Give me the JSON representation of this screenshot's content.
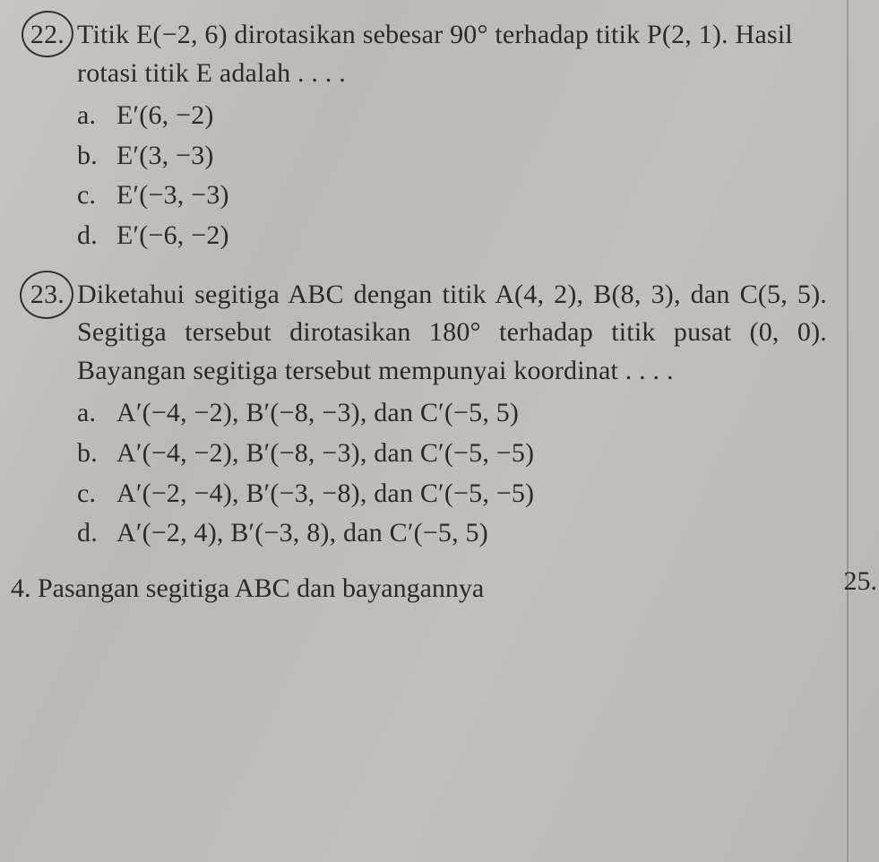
{
  "colors": {
    "paper_bg": "#c0bdb6",
    "text": "#2b2a28",
    "pencil_circle": "#2f2f2d",
    "margin_line": "#8a8780"
  },
  "typography": {
    "family": "Georgia, Times New Roman, serif",
    "base_size_pt": 22,
    "line_height": 1.42
  },
  "q22": {
    "number": "22.",
    "stem": "Titik E(−2, 6) dirotasikan sebesar 90° terhadap titik P(2, 1). Hasil rotasi titik E adalah . . . .",
    "options": {
      "a": {
        "letter": "a.",
        "text": "E′(6, −2)"
      },
      "b": {
        "letter": "b.",
        "text": "E′(3, −3)"
      },
      "c": {
        "letter": "c.",
        "text": "E′(−3, −3)"
      },
      "d": {
        "letter": "d.",
        "text": "E′(−6, −2)"
      }
    }
  },
  "q23": {
    "number": "23.",
    "stem": "Diketahui segitiga ABC dengan titik A(4, 2), B(8, 3), dan C(5, 5). Segitiga tersebut dirotasikan 180° terhadap titik pusat (0, 0). Bayangan segitiga tersebut mempunyai koordinat . . . .",
    "options": {
      "a": {
        "letter": "a.",
        "text": "A′(−4, −2), B′(−8, −3), dan C′(−5, 5)"
      },
      "b": {
        "letter": "b.",
        "text": "A′(−4, −2), B′(−8, −3), dan C′(−5, −5)"
      },
      "c": {
        "letter": "c.",
        "text": "A′(−2, −4), B′(−3, −8), dan C′(−5, −5)"
      },
      "d": {
        "letter": "d.",
        "text": "A′(−2, 4), B′(−3, 8), dan C′(−5, 5)"
      }
    }
  },
  "q24": {
    "partial": "4. Pasangan segitiga ABC dan bayangannya"
  },
  "side": {
    "q25": "25."
  }
}
